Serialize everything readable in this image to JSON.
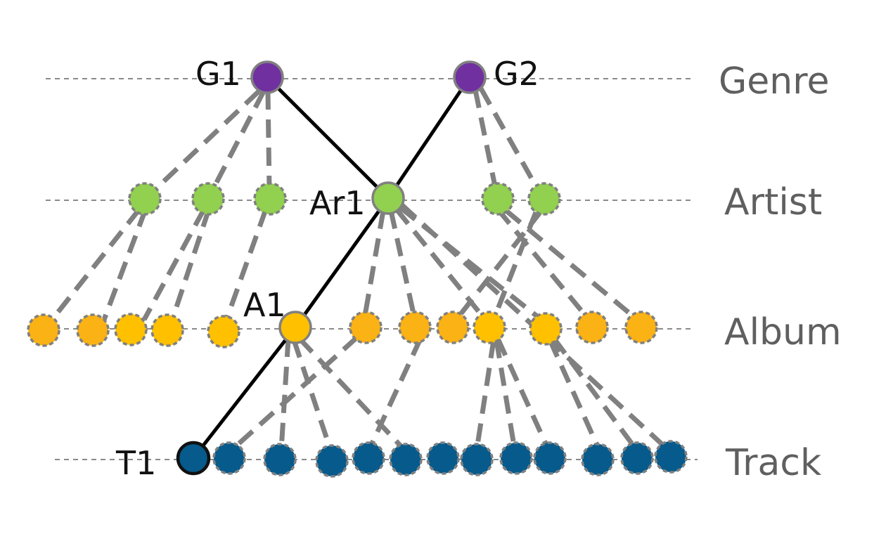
{
  "colors": {
    "genre": "#7030a0",
    "artist": "#92d050",
    "album_light": "#ffc000",
    "album_dark": "#fbb215",
    "track": "#065a8c",
    "dashed_edge": "#808080",
    "highlight_edge": "#000000"
  },
  "levels": [
    {
      "key": "genre",
      "label": "Genre"
    },
    {
      "key": "artist",
      "label": "Artist"
    },
    {
      "key": "album",
      "label": "Album"
    },
    {
      "key": "track",
      "label": "Track"
    }
  ],
  "nodes": {
    "genre": [
      {
        "id": "g1",
        "label": "G1",
        "highlighted": true
      },
      {
        "id": "g2",
        "label": "G2",
        "highlighted": true
      }
    ],
    "artist": [
      {
        "id": "ar-a"
      },
      {
        "id": "ar-b"
      },
      {
        "id": "ar-c"
      },
      {
        "id": "ar1",
        "label": "Ar1",
        "highlighted": true
      },
      {
        "id": "ar-d"
      },
      {
        "id": "ar-e"
      }
    ],
    "album": [
      {
        "id": "al-1",
        "shade": "dark"
      },
      {
        "id": "al-2",
        "shade": "dark"
      },
      {
        "id": "al-3",
        "shade": "light"
      },
      {
        "id": "al-4",
        "shade": "light"
      },
      {
        "id": "al-5",
        "shade": "light"
      },
      {
        "id": "a1",
        "label": "A1",
        "shade": "light",
        "highlighted": true
      },
      {
        "id": "al-6",
        "shade": "dark"
      },
      {
        "id": "al-7",
        "shade": "dark"
      },
      {
        "id": "al-8",
        "shade": "dark"
      },
      {
        "id": "al-9",
        "shade": "light"
      },
      {
        "id": "al-10",
        "shade": "light"
      },
      {
        "id": "al-11",
        "shade": "dark"
      },
      {
        "id": "al-12",
        "shade": "dark"
      }
    ],
    "track": [
      {
        "id": "t1",
        "label": "T1",
        "highlighted": true
      },
      {
        "id": "tr-1"
      },
      {
        "id": "tr-2"
      },
      {
        "id": "tr-3"
      },
      {
        "id": "tr-4"
      },
      {
        "id": "tr-5"
      },
      {
        "id": "tr-6"
      },
      {
        "id": "tr-7"
      },
      {
        "id": "tr-8"
      },
      {
        "id": "tr-9"
      },
      {
        "id": "tr-10"
      },
      {
        "id": "tr-11"
      },
      {
        "id": "tr-12"
      }
    ]
  },
  "highlighted_path": [
    "g1",
    "ar1",
    "g2",
    "a1",
    "t1"
  ],
  "labels": {
    "genre_level": "Genre",
    "artist_level": "Artist",
    "album_level": "Album",
    "track_level": "Track",
    "g1": "G1",
    "g2": "G2",
    "ar1": "Ar1",
    "a1": "A1",
    "t1": "T1"
  }
}
